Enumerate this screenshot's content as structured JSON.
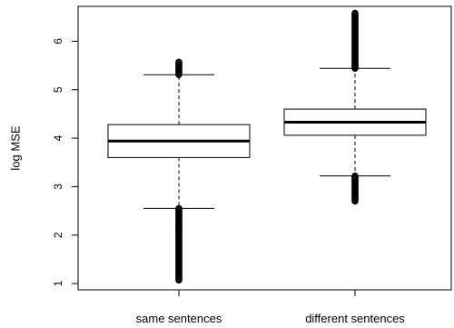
{
  "chart_data": {
    "type": "box",
    "title": "",
    "xlabel": "",
    "ylabel": "log MSE",
    "ylim": [
      0.87,
      6.72
    ],
    "yticks": [
      1,
      2,
      3,
      4,
      5,
      6
    ],
    "categories": [
      "same sentences",
      "different sentences"
    ],
    "boxes": [
      {
        "category": "same sentences",
        "whisker_low": 2.55,
        "q1": 3.6,
        "median": 3.94,
        "q3": 4.28,
        "whisker_high": 5.31,
        "outliers_low_range": [
          1.07,
          2.55
        ],
        "outliers_high_range": [
          5.31,
          5.57
        ]
      },
      {
        "category": "different sentences",
        "whisker_low": 3.22,
        "q1": 4.06,
        "median": 4.33,
        "q3": 4.6,
        "whisker_high": 5.44,
        "outliers_low_range": [
          2.7,
          3.22
        ],
        "outliers_high_range": [
          5.44,
          6.58
        ]
      }
    ],
    "grid": false,
    "legend": "none"
  }
}
